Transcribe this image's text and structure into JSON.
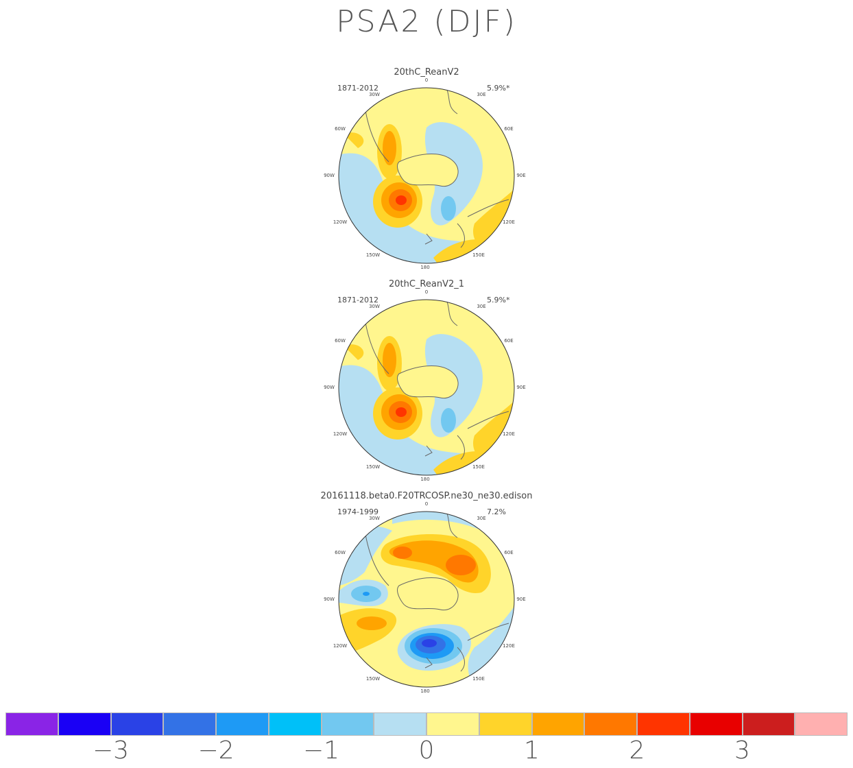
{
  "title": "PSA2 (DJF)",
  "panels": [
    {
      "name": "20thC_ReanV2",
      "period": "1871-2012",
      "variance": "5.9%*"
    },
    {
      "name": "20thC_ReanV2_1",
      "period": "1871-2012",
      "variance": "5.9%*"
    },
    {
      "name": "20161118.beta0.F20TRCOSP.ne30_ne30.edison",
      "period": "1974-1999",
      "variance": "7.2%"
    }
  ],
  "longitude_labels": [
    "0",
    "30E",
    "60E",
    "90E",
    "120E",
    "150E",
    "180",
    "150W",
    "120W",
    "90W",
    "60W",
    "30W"
  ],
  "colorbar": {
    "colors": [
      "#8a24e6",
      "#1a00f5",
      "#2a42e6",
      "#3372e6",
      "#1e9af5",
      "#00c0f8",
      "#72c8f0",
      "#b6dff2",
      "#fff68e",
      "#ffd42a",
      "#ffa400",
      "#ff7800",
      "#ff3400",
      "#e80000",
      "#cc1e1e",
      "#ffb0b0"
    ],
    "tick_labels": [
      "-3",
      "-2",
      "-1",
      "0",
      "1",
      "2",
      "3"
    ]
  },
  "colors": {
    "land_outline": "#666666",
    "map_border": "#333333"
  }
}
